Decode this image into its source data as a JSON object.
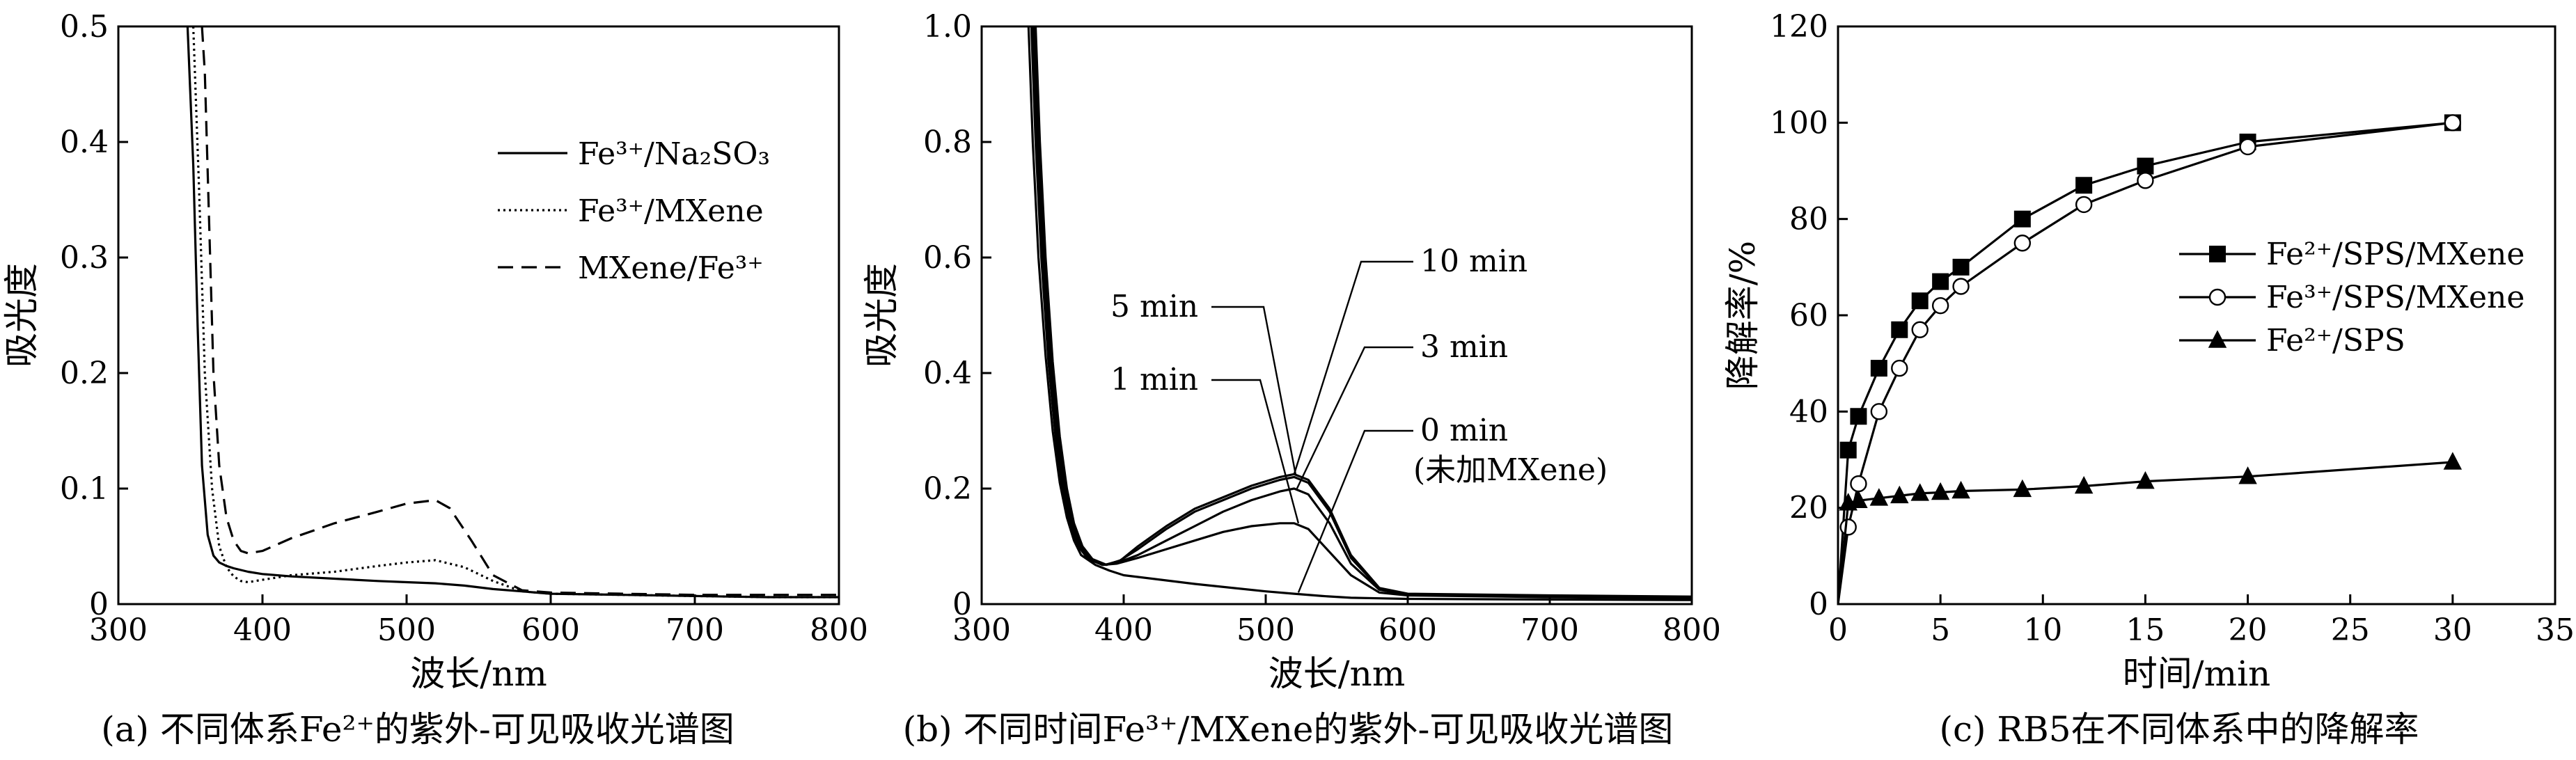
{
  "chart_data": [
    {
      "id": "a",
      "type": "line",
      "caption": "(a) 不同体系Fe²⁺的紫外-可见吸收光谱图",
      "xlabel": "波长/nm",
      "ylabel": "吸光度",
      "xlim": [
        300,
        800
      ],
      "ylim": [
        0,
        0.5
      ],
      "xticks": [
        300,
        400,
        500,
        600,
        700,
        800
      ],
      "yticks": [
        0,
        0.1,
        0.2,
        0.3,
        0.4,
        0.5
      ],
      "ytick_labels": [
        "0",
        "0.1",
        "0.2",
        "0.3",
        "0.4",
        "0.5"
      ],
      "grid": false,
      "legend_position": "top-right",
      "series": [
        {
          "name": "Fe³⁺/Na₂SO₃",
          "style": "solid",
          "x": [
            348,
            352,
            355,
            358,
            362,
            366,
            370,
            375,
            380,
            390,
            400,
            420,
            450,
            480,
            500,
            520,
            540,
            560,
            580,
            600,
            650,
            700,
            750,
            800
          ],
          "y": [
            0.5,
            0.38,
            0.24,
            0.12,
            0.06,
            0.042,
            0.036,
            0.033,
            0.031,
            0.028,
            0.026,
            0.024,
            0.022,
            0.02,
            0.019,
            0.018,
            0.016,
            0.013,
            0.011,
            0.009,
            0.008,
            0.007,
            0.006,
            0.006
          ]
        },
        {
          "name": "Fe³⁺/MXene",
          "style": "dotted",
          "x": [
            352,
            356,
            360,
            365,
            370,
            375,
            380,
            385,
            390,
            400,
            420,
            450,
            480,
            500,
            520,
            540,
            560,
            580,
            600,
            650,
            700,
            750,
            800
          ],
          "y": [
            0.5,
            0.36,
            0.2,
            0.1,
            0.05,
            0.032,
            0.024,
            0.02,
            0.019,
            0.021,
            0.025,
            0.028,
            0.033,
            0.036,
            0.038,
            0.032,
            0.02,
            0.011,
            0.009,
            0.008,
            0.007,
            0.006,
            0.006
          ]
        },
        {
          "name": "MXene/Fe³⁺",
          "style": "dashed",
          "x": [
            358,
            360,
            363,
            366,
            370,
            375,
            380,
            385,
            390,
            400,
            420,
            450,
            480,
            500,
            520,
            530,
            545,
            560,
            580,
            600,
            650,
            700,
            750,
            800
          ],
          "y": [
            0.5,
            0.46,
            0.33,
            0.2,
            0.12,
            0.075,
            0.055,
            0.046,
            0.044,
            0.046,
            0.057,
            0.07,
            0.08,
            0.087,
            0.09,
            0.083,
            0.055,
            0.025,
            0.012,
            0.01,
            0.009,
            0.008,
            0.008,
            0.008
          ]
        }
      ]
    },
    {
      "id": "b",
      "type": "line",
      "caption": "(b) 不同时间Fe³⁺/MXene的紫外-可见吸收光谱图",
      "xlabel": "波长/nm",
      "ylabel": "吸光度",
      "xlim": [
        300,
        800
      ],
      "ylim": [
        0,
        1.0
      ],
      "xticks": [
        300,
        400,
        500,
        600,
        700,
        800
      ],
      "yticks": [
        0,
        0.2,
        0.4,
        0.6,
        0.8,
        1.0
      ],
      "ytick_labels": [
        "0",
        "0.2",
        "0.4",
        "0.6",
        "0.8",
        "1.0"
      ],
      "grid": false,
      "annotations": [
        {
          "text": "10 min",
          "target": [
            520,
            0.225
          ]
        },
        {
          "text": "5 min",
          "target": [
            521,
            0.225
          ]
        },
        {
          "text": "3 min",
          "target": [
            522,
            0.2
          ]
        },
        {
          "text": "1 min",
          "target": [
            523,
            0.14
          ]
        },
        {
          "text": "0 min",
          "target": [
            523,
            0.02
          ]
        },
        {
          "text": "(未加MXene)",
          "target": null
        }
      ],
      "series": [
        {
          "name": "0 min",
          "x": [
            333,
            336,
            340,
            345,
            350,
            355,
            360,
            365,
            370,
            380,
            390,
            400,
            450,
            500,
            520,
            540,
            560,
            580,
            600,
            700,
            800
          ],
          "y": [
            1.0,
            0.8,
            0.6,
            0.43,
            0.3,
            0.21,
            0.15,
            0.11,
            0.085,
            0.068,
            0.058,
            0.05,
            0.035,
            0.022,
            0.018,
            0.014,
            0.011,
            0.01,
            0.009,
            0.008,
            0.007
          ]
        },
        {
          "name": "1 min",
          "x": [
            335,
            338,
            342,
            347,
            352,
            357,
            362,
            368,
            375,
            385,
            395,
            410,
            430,
            450,
            470,
            490,
            510,
            520,
            530,
            545,
            560,
            580,
            600,
            700,
            800
          ],
          "y": [
            1.0,
            0.8,
            0.6,
            0.42,
            0.29,
            0.2,
            0.14,
            0.1,
            0.078,
            0.068,
            0.07,
            0.08,
            0.095,
            0.11,
            0.125,
            0.135,
            0.14,
            0.14,
            0.13,
            0.09,
            0.05,
            0.02,
            0.015,
            0.012,
            0.01
          ]
        },
        {
          "name": "3 min",
          "x": [
            336,
            339,
            343,
            348,
            353,
            358,
            363,
            369,
            376,
            386,
            396,
            410,
            430,
            450,
            470,
            490,
            510,
            520,
            530,
            545,
            560,
            580,
            600,
            700,
            800
          ],
          "y": [
            1.0,
            0.8,
            0.6,
            0.42,
            0.29,
            0.2,
            0.14,
            0.1,
            0.078,
            0.068,
            0.072,
            0.085,
            0.11,
            0.135,
            0.16,
            0.18,
            0.195,
            0.2,
            0.19,
            0.14,
            0.07,
            0.025,
            0.016,
            0.013,
            0.011
          ]
        },
        {
          "name": "5 min",
          "x": [
            337,
            340,
            344,
            349,
            354,
            359,
            364,
            370,
            377,
            387,
            397,
            410,
            430,
            450,
            470,
            490,
            510,
            520,
            530,
            545,
            560,
            580,
            600,
            700,
            800
          ],
          "y": [
            1.0,
            0.8,
            0.6,
            0.42,
            0.29,
            0.2,
            0.14,
            0.1,
            0.078,
            0.068,
            0.075,
            0.095,
            0.13,
            0.16,
            0.18,
            0.2,
            0.215,
            0.22,
            0.21,
            0.16,
            0.08,
            0.027,
            0.017,
            0.014,
            0.012
          ]
        },
        {
          "name": "10 min",
          "x": [
            338,
            341,
            345,
            350,
            355,
            360,
            365,
            371,
            378,
            388,
            398,
            410,
            430,
            450,
            470,
            490,
            510,
            520,
            530,
            545,
            560,
            580,
            600,
            700,
            800
          ],
          "y": [
            1.0,
            0.8,
            0.6,
            0.42,
            0.29,
            0.2,
            0.14,
            0.1,
            0.078,
            0.068,
            0.076,
            0.1,
            0.135,
            0.165,
            0.185,
            0.205,
            0.22,
            0.225,
            0.215,
            0.165,
            0.085,
            0.028,
            0.018,
            0.015,
            0.013
          ]
        }
      ]
    },
    {
      "id": "c",
      "type": "line",
      "caption": "(c) RB5在不同体系中的降解率",
      "xlabel": "时间/min",
      "ylabel": "降解率/%",
      "xlim": [
        0,
        35
      ],
      "ylim": [
        0,
        120
      ],
      "xticks": [
        0,
        5,
        10,
        15,
        20,
        25,
        30,
        35
      ],
      "yticks": [
        0,
        20,
        40,
        60,
        80,
        100,
        120
      ],
      "ytick_labels": [
        "0",
        "20",
        "40",
        "60",
        "80",
        "100",
        "120"
      ],
      "grid": false,
      "legend_position": "center-right",
      "series": [
        {
          "name": "Fe²⁺/SPS/MXene",
          "marker": "square-filled",
          "x": [
            0,
            0.5,
            1,
            2,
            3,
            4,
            5,
            6,
            9,
            12,
            15,
            20,
            30
          ],
          "y": [
            0,
            32,
            39,
            49,
            57,
            63,
            67,
            70,
            80,
            87,
            91,
            96,
            100
          ]
        },
        {
          "name": "Fe³⁺/SPS/MXene",
          "marker": "circle-open",
          "x": [
            0,
            0.5,
            1,
            2,
            3,
            4,
            5,
            6,
            9,
            12,
            15,
            20,
            30
          ],
          "y": [
            0,
            16,
            25,
            40,
            49,
            57,
            62,
            66,
            75,
            83,
            88,
            95,
            100
          ]
        },
        {
          "name": "Fe²⁺/SPS",
          "marker": "triangle-filled",
          "x": [
            0,
            0.5,
            1,
            2,
            3,
            4,
            5,
            6,
            9,
            12,
            15,
            20,
            30
          ],
          "y": [
            0,
            21,
            21.5,
            22,
            22.5,
            23,
            23.2,
            23.5,
            23.8,
            24.5,
            25.5,
            26.5,
            29.5
          ]
        }
      ]
    }
  ]
}
